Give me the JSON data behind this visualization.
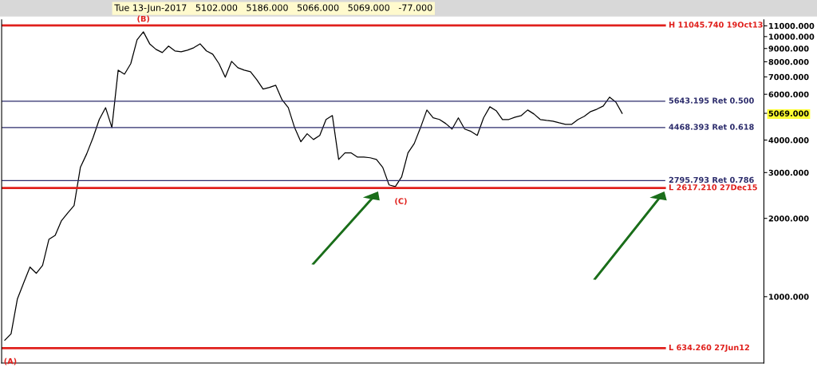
{
  "chart_data": {
    "type": "line",
    "title": "Tue 13-Jun-2017   5102.000   5186.000   5066.000   5069.000   -77.000",
    "categories": [
      null,
      null,
      null,
      null,
      null,
      null,
      null,
      null,
      null,
      null,
      null,
      null,
      null,
      null,
      null,
      null,
      null,
      null,
      null,
      null,
      null,
      null,
      null,
      null,
      null,
      null,
      null,
      null,
      null,
      null,
      null,
      null,
      null,
      null,
      null,
      null,
      null,
      null,
      null,
      null,
      null,
      null,
      null,
      null,
      null,
      null,
      null,
      null,
      null,
      null,
      null,
      null,
      null,
      null,
      null,
      null,
      null,
      null,
      null,
      null,
      null,
      null,
      null,
      null,
      null,
      null,
      null,
      null,
      null,
      null,
      null,
      null,
      null,
      null,
      null,
      null,
      null,
      null,
      null,
      null,
      null,
      null,
      null,
      null,
      null,
      null,
      null,
      null,
      null,
      null,
      null,
      null,
      null,
      null,
      null,
      null,
      null,
      null,
      null,
      null,
      null,
      null,
      null,
      null,
      null,
      null,
      null,
      null,
      null,
      null,
      null,
      null,
      null,
      null,
      null,
      null,
      null,
      null,
      null,
      null,
      null
    ],
    "series": [
      {
        "color": "#000000",
        "values": [
          680,
          720,
          980,
          1130,
          1300,
          1230,
          1320,
          1660,
          1720,
          1960,
          2100,
          2240,
          3140,
          3540,
          4080,
          4800,
          5330,
          4470,
          7430,
          7170,
          7870,
          9720,
          10430,
          9380,
          8930,
          8680,
          9190,
          8810,
          8740,
          8870,
          9060,
          9380,
          8810,
          8560,
          7870,
          6980,
          8030,
          7590,
          7430,
          7330,
          6830,
          6280,
          6370,
          6500,
          5720,
          5330,
          4470,
          3940,
          4230,
          4020,
          4170,
          4800,
          4970,
          3370,
          3570,
          3570,
          3440,
          3440,
          3420,
          3370,
          3140,
          2690,
          2650,
          2890,
          3570,
          3880,
          4470,
          5220,
          4870,
          4800,
          4630,
          4410,
          4870,
          4410,
          4320,
          4170,
          4870,
          5370,
          5190,
          4800,
          4800,
          4900,
          4970,
          5220,
          5040,
          4800,
          4760,
          4730,
          4660,
          4600,
          4600,
          4800,
          4940,
          5150,
          5260,
          5410,
          5850,
          5600,
          5069,
          null,
          null,
          null,
          null,
          null,
          null,
          null,
          null,
          null,
          null,
          null,
          null,
          null,
          null,
          null,
          null,
          null,
          null,
          null,
          null,
          null,
          null
        ]
      }
    ],
    "log": true,
    "ylim": [
      556,
      11600
    ],
    "yticks": [
      {
        "value": 1000,
        "label": "1000.000"
      },
      {
        "value": 2000,
        "label": "2000.000"
      },
      {
        "value": 3000,
        "label": "3000.000"
      },
      {
        "value": 4000,
        "label": "4000.000"
      },
      {
        "value": 5069,
        "label": "5069.000"
      },
      {
        "value": 6000,
        "label": "6000.000"
      },
      {
        "value": 7000,
        "label": "7000.000"
      },
      {
        "value": 8000,
        "label": "8000.000"
      },
      {
        "value": 9000,
        "label": "9000.000"
      },
      {
        "value": 10000,
        "label": "10000.000"
      },
      {
        "value": 11000,
        "label": "11000.000"
      }
    ],
    "ref_lines": [
      {
        "axis": "y",
        "value": 11045.74,
        "label": "H 11045.740 19Oct13",
        "color": "#e0201c"
      },
      {
        "axis": "y",
        "value": 5643.195,
        "label": "5643.195 Ret 0.500",
        "color": "#2b2b6b"
      },
      {
        "axis": "y",
        "value": 4468.393,
        "label": "4468.393 Ret 0.618",
        "color": "#2b2b6b"
      },
      {
        "axis": "y",
        "value": 2795.793,
        "label": "2795.793 Ret 0.786",
        "color": "#2b2b6b"
      },
      {
        "axis": "y",
        "value": 2617.21,
        "label": "L 2617.210 27Dec15",
        "color": "#e0201c"
      },
      {
        "axis": "y",
        "value": 634.26,
        "label": "L 634.260 27Jun12",
        "color": "#e0201c"
      }
    ],
    "annotations": [
      {
        "text": "(A)",
        "y": 634.26
      },
      {
        "text": "(B)",
        "y": 11045.74
      },
      {
        "text": "(C)",
        "y": 2617.21
      }
    ],
    "grid": false
  }
}
